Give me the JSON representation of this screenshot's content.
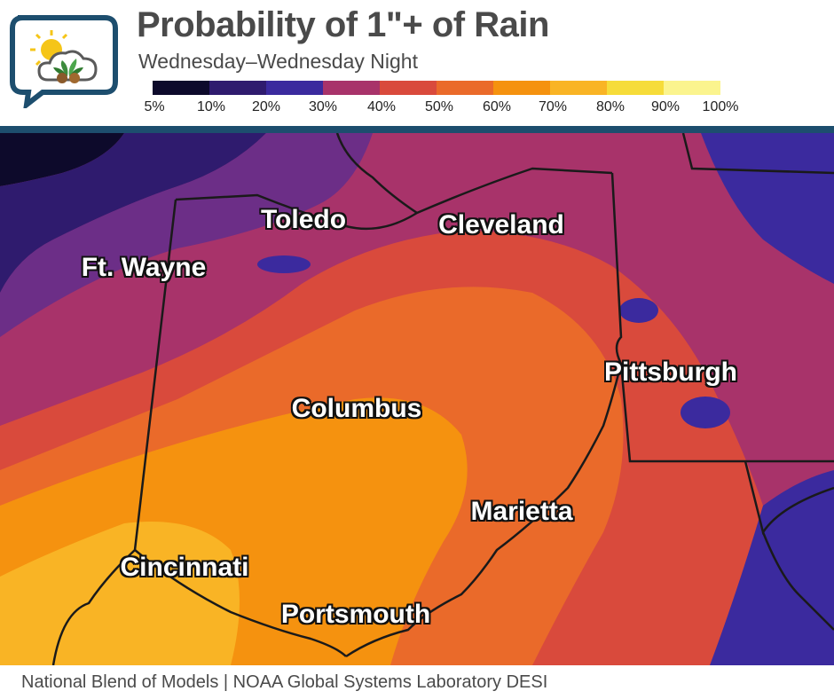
{
  "header": {
    "title": "Probability of 1\"+ of Rain",
    "subtitle": "Wednesday–Wednesday Night"
  },
  "legend": {
    "colors": [
      "#0d0a2b",
      "#2f1b6e",
      "#3b2a9e",
      "#a8336a",
      "#d94a3c",
      "#ea6a2a",
      "#f5920f",
      "#f9b425",
      "#f6dc3a",
      "#fbf48e"
    ],
    "labels": [
      "5%",
      "10%",
      "20%",
      "30%",
      "40%",
      "50%",
      "60%",
      "70%",
      "80%",
      "90%",
      "100%"
    ]
  },
  "cities": {
    "toledo": "Toledo",
    "cleveland": "Cleveland",
    "ft_wayne": "Ft. Wayne",
    "pittsburgh": "Pittsburgh",
    "columbus": "Columbus",
    "marietta": "Marietta",
    "cincinnati": "Cincinnati",
    "portsmouth": "Portsmouth"
  },
  "logo": {
    "icon": "weather-cloud-leaf-icon"
  },
  "footer": {
    "source": "National Blend of Models | NOAA Global Systems Laboratory DESI"
  }
}
